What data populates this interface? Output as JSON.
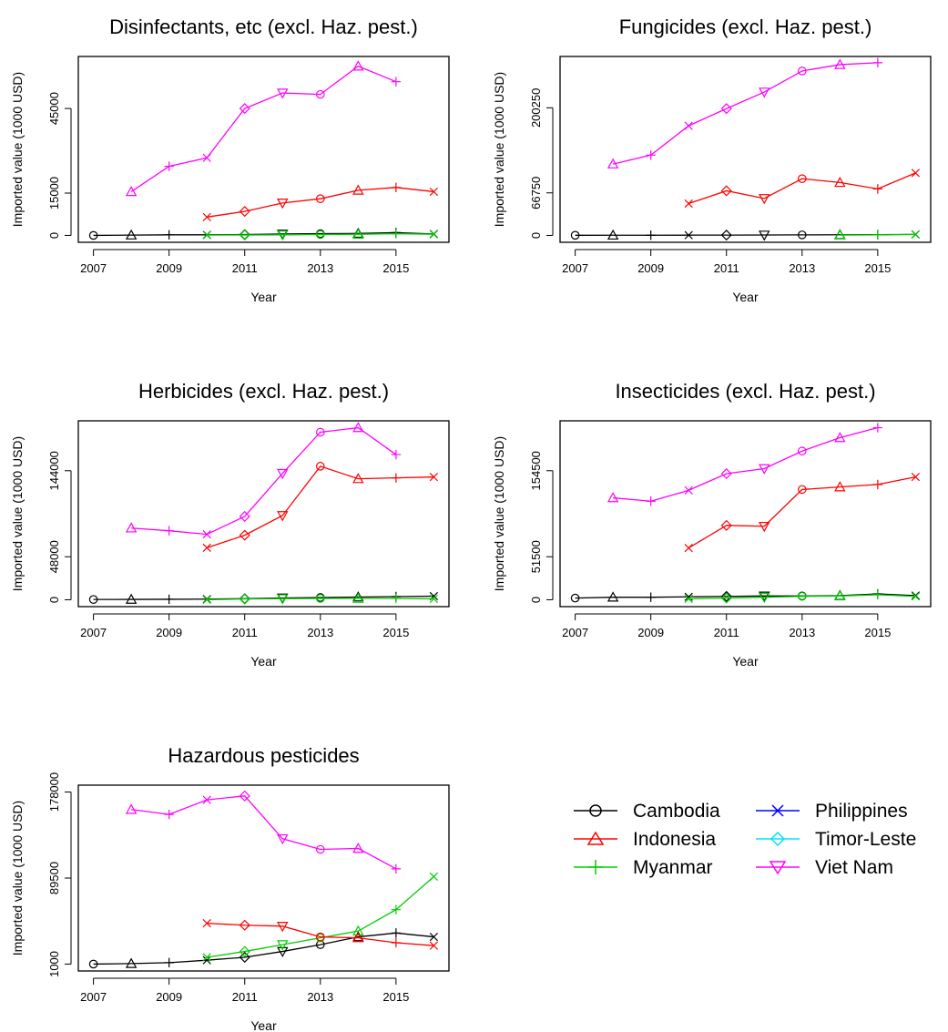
{
  "series_meta": [
    {
      "name": "Cambodia",
      "color": "#000000",
      "pch": "circle"
    },
    {
      "name": "Indonesia",
      "color": "#ff0000",
      "pch": "triangle-up"
    },
    {
      "name": "Myanmar",
      "color": "#00cd00",
      "pch": "plus"
    },
    {
      "name": "Philippines",
      "color": "#0000ff",
      "pch": "cross"
    },
    {
      "name": "Timor-Leste",
      "color": "#00e5ee",
      "pch": "diamond"
    },
    {
      "name": "Viet Nam",
      "color": "#ff00ff",
      "pch": "triangle-down"
    }
  ],
  "chart_data": [
    {
      "type": "line",
      "title": "Disinfectants, etc (excl. Haz. pest.)",
      "xlabel": "Year",
      "ylabel": "Imported value (1000 USD)",
      "x_ticks": [
        "2007",
        "2009",
        "2011",
        "2013",
        "2015"
      ],
      "y_ticks": [
        "0",
        "15000",
        "45000"
      ],
      "ylim": [
        0,
        61000
      ],
      "series": [
        {
          "name": "Cambodia",
          "x": [
            2007,
            2008,
            2009,
            2010,
            2011,
            2012,
            2013,
            2014,
            2015,
            2016
          ],
          "values": [
            0,
            100,
            200,
            200,
            300,
            500,
            600,
            700,
            1000,
            500
          ]
        },
        {
          "name": "Myanmar",
          "x": [
            2010,
            2011,
            2012,
            2013,
            2014,
            2015,
            2016
          ],
          "values": [
            100,
            150,
            200,
            300,
            400,
            600,
            400
          ]
        },
        {
          "name": "Indonesia",
          "x": [
            2010,
            2011,
            2012,
            2013,
            2014,
            2015,
            2016
          ],
          "values": [
            6500,
            8500,
            11500,
            13000,
            16000,
            17000,
            15500
          ]
        },
        {
          "name": "Viet Nam",
          "x": [
            2008,
            2009,
            2010,
            2011,
            2012,
            2013,
            2014,
            2015
          ],
          "values": [
            15500,
            24500,
            27500,
            45000,
            50500,
            50000,
            60000,
            54500
          ]
        }
      ]
    },
    {
      "type": "line",
      "title": "Fungicides (excl. Haz. pest.)",
      "xlabel": "Year",
      "ylabel": "Imported value (1000 USD)",
      "x_ticks": [
        "2007",
        "2009",
        "2011",
        "2013",
        "2015"
      ],
      "y_ticks": [
        "0",
        "66750",
        "200250"
      ],
      "ylim": [
        0,
        270000
      ],
      "series": [
        {
          "name": "Cambodia",
          "x": [
            2007,
            2008,
            2009,
            2010,
            2011,
            2012,
            2013,
            2014,
            2015,
            2016
          ],
          "values": [
            200,
            300,
            300,
            400,
            500,
            600,
            800,
            1000,
            1200,
            1500
          ]
        },
        {
          "name": "Myanmar",
          "x": [
            2014,
            2015,
            2016
          ],
          "values": [
            500,
            800,
            1500
          ]
        },
        {
          "name": "Indonesia",
          "x": [
            2010,
            2011,
            2012,
            2013,
            2014,
            2015,
            2016
          ],
          "values": [
            50000,
            70000,
            58000,
            89000,
            83000,
            73000,
            98000
          ]
        },
        {
          "name": "Viet Nam",
          "x": [
            2008,
            2009,
            2010,
            2011,
            2012,
            2013,
            2014,
            2015
          ],
          "values": [
            112000,
            126000,
            172000,
            199000,
            225000,
            258000,
            268000,
            271000
          ]
        }
      ]
    },
    {
      "type": "line",
      "title": "Herbicides (excl. Haz. pest.)",
      "xlabel": "Year",
      "ylabel": "Imported value (1000 USD)",
      "x_ticks": [
        "2007",
        "2009",
        "2011",
        "2013",
        "2015"
      ],
      "y_ticks": [
        "0",
        "48000",
        "144000"
      ],
      "ylim": [
        0,
        192000
      ],
      "series": [
        {
          "name": "Cambodia",
          "x": [
            2007,
            2008,
            2009,
            2010,
            2011,
            2012,
            2013,
            2014,
            2015,
            2016
          ],
          "values": [
            300,
            400,
            500,
            700,
            1200,
            2000,
            2500,
            3000,
            3500,
            4000
          ]
        },
        {
          "name": "Myanmar",
          "x": [
            2010,
            2011,
            2012,
            2013,
            2014,
            2015,
            2016
          ],
          "values": [
            100,
            800,
            1200,
            1500,
            1500,
            1500,
            1000
          ]
        },
        {
          "name": "Indonesia",
          "x": [
            2010,
            2011,
            2012,
            2013,
            2014,
            2015,
            2016
          ],
          "values": [
            58000,
            72000,
            94000,
            149000,
            135000,
            136000,
            137000
          ]
        },
        {
          "name": "Viet Nam",
          "x": [
            2008,
            2009,
            2010,
            2011,
            2012,
            2013,
            2014,
            2015
          ],
          "values": [
            80000,
            77000,
            73000,
            93000,
            141000,
            187000,
            192000,
            162000
          ]
        }
      ]
    },
    {
      "type": "line",
      "title": "Insecticides (excl. Haz. pest.)",
      "xlabel": "Year",
      "ylabel": "Imported value (1000 USD)",
      "x_ticks": [
        "2007",
        "2009",
        "2011",
        "2013",
        "2015"
      ],
      "y_ticks": [
        "0",
        "51500",
        "154500"
      ],
      "ylim": [
        0,
        206000
      ],
      "series": [
        {
          "name": "Cambodia",
          "x": [
            2007,
            2008,
            2009,
            2010,
            2011,
            2012,
            2013,
            2014,
            2015,
            2016
          ],
          "values": [
            2000,
            3000,
            3000,
            3500,
            4000,
            4500,
            4500,
            5000,
            7000,
            5000
          ]
        },
        {
          "name": "Myanmar",
          "x": [
            2010,
            2011,
            2012,
            2013,
            2014,
            2015,
            2016
          ],
          "values": [
            1000,
            2000,
            3000,
            4000,
            4500,
            6000,
            4000
          ]
        },
        {
          "name": "Indonesia",
          "x": [
            2010,
            2011,
            2012,
            2013,
            2014,
            2015,
            2016
          ],
          "values": [
            62000,
            89000,
            88000,
            132000,
            135000,
            138000,
            147000
          ]
        },
        {
          "name": "Viet Nam",
          "x": [
            2008,
            2009,
            2010,
            2011,
            2012,
            2013,
            2014,
            2015
          ],
          "values": [
            122000,
            118000,
            131000,
            151000,
            157000,
            178000,
            194000,
            206000
          ]
        }
      ]
    },
    {
      "type": "line",
      "title": "Hazardous pesticides",
      "xlabel": "Year",
      "ylabel": "Imported value (1000 USD)",
      "x_ticks": [
        "2007",
        "2009",
        "2011",
        "2013",
        "2015"
      ],
      "y_ticks": [
        "1000",
        "89500",
        "178000"
      ],
      "ylim": [
        1000,
        178000
      ],
      "series": [
        {
          "name": "Cambodia",
          "x": [
            2007,
            2008,
            2009,
            2010,
            2011,
            2012,
            2013,
            2014,
            2015,
            2016
          ],
          "values": [
            1000,
            1500,
            2500,
            5000,
            8000,
            14000,
            21000,
            29000,
            33000,
            29000
          ]
        },
        {
          "name": "Myanmar",
          "x": [
            2010,
            2011,
            2012,
            2013,
            2014,
            2015,
            2016
          ],
          "values": [
            8000,
            14000,
            21000,
            28000,
            35000,
            57000,
            91000
          ]
        },
        {
          "name": "Indonesia",
          "x": [
            2010,
            2011,
            2012,
            2013,
            2014,
            2015,
            2016
          ],
          "values": [
            43000,
            41000,
            40000,
            29000,
            28000,
            23000,
            20000
          ]
        },
        {
          "name": "Viet Nam",
          "x": [
            2008,
            2009,
            2010,
            2011,
            2012,
            2013,
            2014,
            2015
          ],
          "values": [
            160000,
            155000,
            170000,
            174000,
            130000,
            119000,
            120000,
            99000
          ]
        }
      ]
    }
  ]
}
